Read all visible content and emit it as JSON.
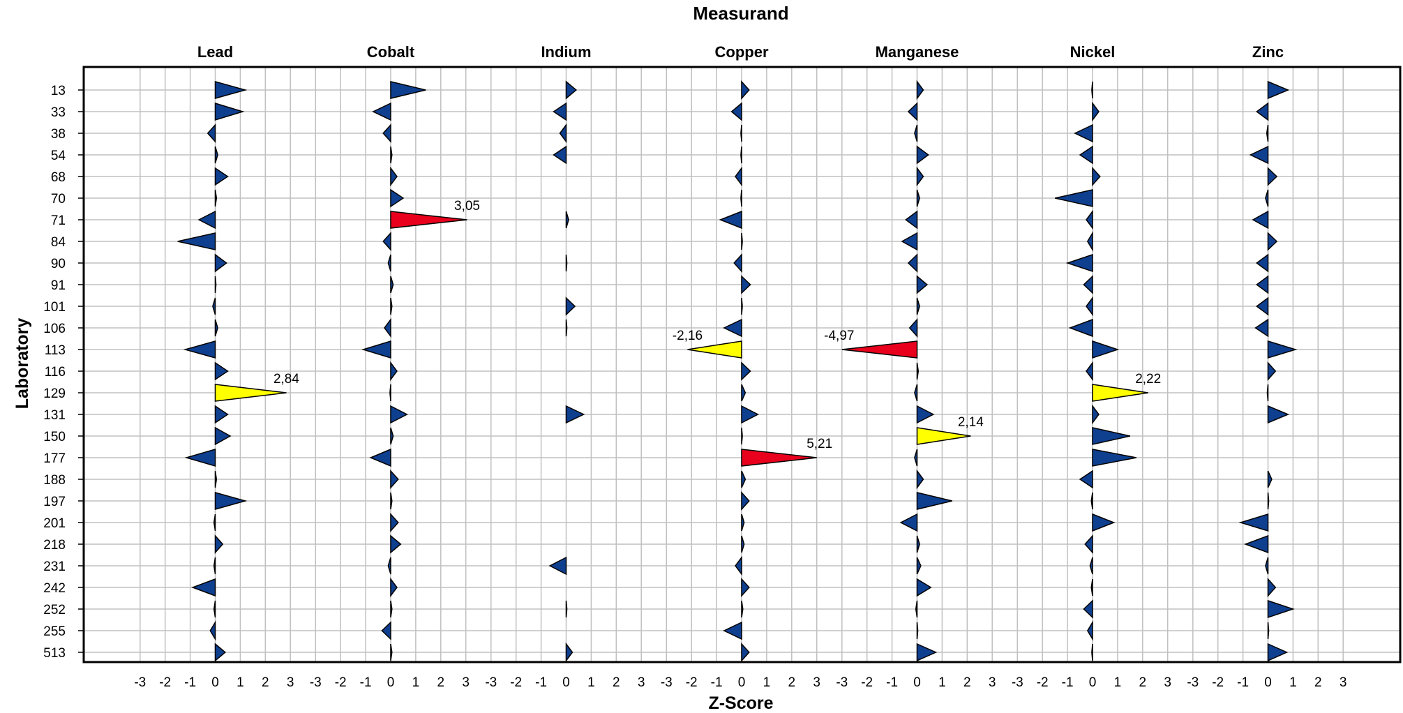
{
  "chart_data": {
    "type": "bar",
    "subtype": "triangle-bar (z-score by laboratory and measurand)",
    "title": "Measurand",
    "xlabel": "Z-Score",
    "ylabel": "Laboratory",
    "xlim": [
      -3.5,
      3.5
    ],
    "x_ticks": [
      "-3",
      "-2",
      "-1",
      "0",
      "1",
      "2",
      "3"
    ],
    "grid": true,
    "laboratories": [
      "13",
      "33",
      "38",
      "54",
      "68",
      "70",
      "71",
      "84",
      "90",
      "91",
      "101",
      "106",
      "113",
      "116",
      "129",
      "131",
      "150",
      "177",
      "188",
      "197",
      "201",
      "218",
      "231",
      "242",
      "252",
      "255",
      "513"
    ],
    "colors": {
      "normal": "#0f3f8f",
      "warning": "#ffff00",
      "action": "#e8001c",
      "outline": "#000000",
      "grid": "#c0c0c0"
    },
    "series": [
      {
        "name": "Lead",
        "values": [
          1.2,
          1.1,
          -0.3,
          0.1,
          0.5,
          0.05,
          -0.65,
          -1.5,
          0.45,
          0.03,
          -0.1,
          0.1,
          -1.2,
          0.5,
          2.84,
          0.5,
          0.6,
          -1.15,
          0.05,
          1.2,
          -0.05,
          0.3,
          -0.05,
          -0.9,
          -0.05,
          -0.2,
          0.4
        ],
        "labels": {
          "129": "2,84"
        }
      },
      {
        "name": "Cobalt",
        "values": [
          1.4,
          -0.7,
          -0.3,
          0.05,
          0.25,
          0.5,
          3.05,
          -0.3,
          -0.1,
          0.1,
          0.05,
          -0.25,
          -1.1,
          0.25,
          -0.03,
          0.65,
          0.1,
          -0.8,
          0.3,
          0.05,
          0.3,
          0.4,
          -0.1,
          0.25,
          0.05,
          -0.35,
          0.05
        ],
        "labels": {
          "71": "3,05"
        }
      },
      {
        "name": "Indium",
        "values": [
          0.4,
          -0.5,
          -0.25,
          -0.5,
          null,
          null,
          0.1,
          null,
          0.03,
          null,
          0.35,
          0.03,
          null,
          null,
          null,
          0.7,
          null,
          null,
          null,
          null,
          null,
          null,
          -0.65,
          null,
          0.03,
          null,
          0.25
        ],
        "labels": {}
      },
      {
        "name": "Copper",
        "values": [
          0.3,
          -0.4,
          -0.03,
          -0.03,
          -0.25,
          -0.03,
          -0.85,
          0.03,
          -0.3,
          0.35,
          0.03,
          -0.7,
          -2.16,
          0.35,
          0.15,
          0.65,
          0.03,
          5.21,
          0.15,
          0.3,
          0.1,
          0.1,
          -0.25,
          0.3,
          0.05,
          -0.7,
          0.3
        ],
        "labels": {
          "113": "-2,16",
          "177": "5,21"
        }
      },
      {
        "name": "Manganese",
        "values": [
          0.25,
          -0.35,
          -0.1,
          0.45,
          0.25,
          0.1,
          -0.45,
          -0.6,
          -0.35,
          0.4,
          0.1,
          -0.3,
          -4.97,
          0.05,
          -0.1,
          0.65,
          2.14,
          -0.1,
          0.25,
          1.4,
          -0.65,
          0.1,
          0.15,
          0.55,
          -0.05,
          0.03,
          0.75
        ],
        "labels": {
          "113": "-4,97",
          "150": "2,14"
        }
      },
      {
        "name": "Nickel",
        "values": [
          -0.03,
          0.25,
          -0.7,
          -0.5,
          0.3,
          -1.5,
          -0.25,
          -0.2,
          -1.0,
          -0.35,
          -0.25,
          -0.9,
          1.0,
          -0.25,
          2.22,
          0.25,
          1.5,
          1.75,
          -0.5,
          -0.05,
          0.85,
          -0.3,
          -0.1,
          -0.05,
          -0.35,
          -0.2,
          -0.03
        ],
        "labels": {
          "129": "2,22"
        }
      },
      {
        "name": "Zinc",
        "values": [
          0.8,
          -0.45,
          -0.05,
          -0.7,
          0.35,
          -0.1,
          -0.6,
          0.35,
          -0.45,
          -0.45,
          -0.45,
          -0.5,
          1.1,
          0.3,
          -0.03,
          0.8,
          null,
          null,
          0.15,
          0.03,
          -1.1,
          -0.9,
          -0.1,
          0.3,
          1.0,
          0.03,
          0.75
        ],
        "labels": {}
      }
    ]
  }
}
